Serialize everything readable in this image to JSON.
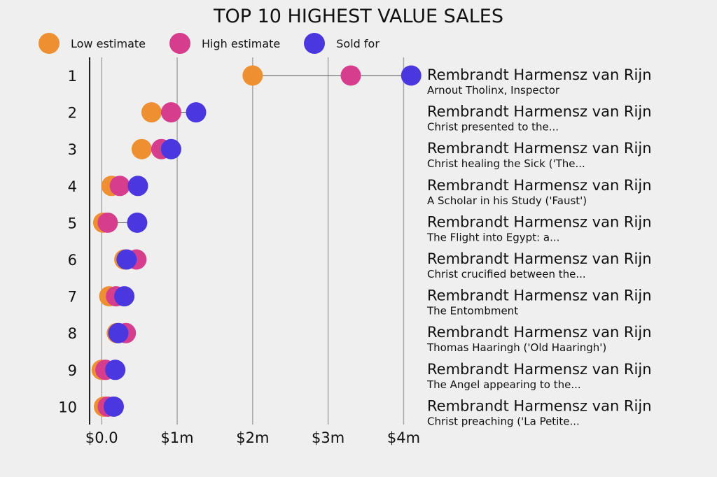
{
  "chart_data": {
    "type": "dot-range",
    "title": "TOP 10 HIGHEST VALUE SALES",
    "legend": [
      {
        "key": "low",
        "label": "Low estimate",
        "color": "#ee8f32"
      },
      {
        "key": "high",
        "label": "High estimate",
        "color": "#d63d8c"
      },
      {
        "key": "sold",
        "label": "Sold for",
        "color": "#4a37e0"
      }
    ],
    "x_ticks": [
      {
        "value": 0,
        "label": "$0.0"
      },
      {
        "value": 1000000,
        "label": "$1m"
      },
      {
        "value": 2000000,
        "label": "$2m"
      },
      {
        "value": 3000000,
        "label": "$3m"
      },
      {
        "value": 4000000,
        "label": "$4m"
      }
    ],
    "xlim": [
      -160000,
      4200000
    ],
    "rows": [
      {
        "rank": "1",
        "artist": "Rembrandt Harmensz van Rijn",
        "work": "Arnout Tholinx, Inspector",
        "low": 2000000,
        "high": 3300000,
        "sold": 4100000
      },
      {
        "rank": "2",
        "artist": "Rembrandt Harmensz van Rijn",
        "work": "Christ presented to the...",
        "low": 660000,
        "high": 920000,
        "sold": 1250000
      },
      {
        "rank": "3",
        "artist": "Rembrandt Harmensz van Rijn",
        "work": "Christ healing the Sick ('The...",
        "low": 530000,
        "high": 790000,
        "sold": 920000
      },
      {
        "rank": "4",
        "artist": "Rembrandt Harmensz van Rijn",
        "work": "A Scholar in his Study ('Faust')",
        "low": 130000,
        "high": 240000,
        "sold": 480000
      },
      {
        "rank": "5",
        "artist": "Rembrandt Harmensz van Rijn",
        "work": "The Flight into Egypt: a...",
        "low": 20000,
        "high": 80000,
        "sold": 470000
      },
      {
        "rank": "6",
        "artist": "Rembrandt Harmensz van Rijn",
        "work": "Christ crucified between the...",
        "low": 300000,
        "high": 460000,
        "sold": 330000
      },
      {
        "rank": "7",
        "artist": "Rembrandt Harmensz van Rijn",
        "work": "The Entombment",
        "low": 100000,
        "high": 190000,
        "sold": 300000
      },
      {
        "rank": "8",
        "artist": "Rembrandt Harmensz van Rijn",
        "work": "Thomas Haaringh ('Old Haaringh')",
        "low": 200000,
        "high": 320000,
        "sold": 220000
      },
      {
        "rank": "9",
        "artist": "Rembrandt Harmensz van Rijn",
        "work": "The Angel appearing to the...",
        "low": 0,
        "high": 50000,
        "sold": 180000
      },
      {
        "rank": "10",
        "artist": "Rembrandt Harmensz van Rijn",
        "work": "Christ preaching ('La Petite...",
        "low": 30000,
        "high": 80000,
        "sold": 160000
      }
    ]
  }
}
